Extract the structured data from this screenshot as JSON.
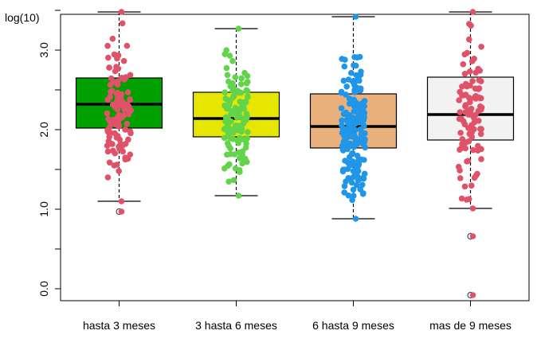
{
  "chart_data": {
    "type": "box",
    "title": "",
    "ylabel": "log(10)",
    "xlabel": "",
    "ylim": [
      -0.15,
      3.45
    ],
    "yticks": [
      "0.0",
      "",
      "1.0",
      "",
      "2.0",
      "",
      "3.0",
      ""
    ],
    "ytick_values": [
      0.0,
      0.5,
      1.0,
      1.5,
      2.0,
      2.5,
      3.0,
      3.5
    ],
    "categories": [
      "hasta 3 meses",
      "3 hasta 6 meses",
      "6 hasta 9 meses",
      "mas de 9 meses"
    ],
    "boxes": [
      {
        "min": 1.1,
        "q1": 2.02,
        "median": 2.32,
        "q3": 2.65,
        "max": 3.48,
        "outliers": [
          0.97
        ],
        "box_color": "#00a000",
        "point_color": "#e05268",
        "n_points": 110
      },
      {
        "min": 1.17,
        "q1": 1.91,
        "median": 2.14,
        "q3": 2.47,
        "max": 3.27,
        "outliers": [],
        "box_color": "#e6e600",
        "point_color": "#62d44a",
        "n_points": 120
      },
      {
        "min": 0.88,
        "q1": 1.77,
        "median": 2.04,
        "q3": 2.45,
        "max": 3.42,
        "outliers": [],
        "box_color": "#e9b07c",
        "point_color": "#2196e8",
        "n_points": 190
      },
      {
        "min": 1.01,
        "q1": 1.87,
        "median": 2.19,
        "q3": 2.66,
        "max": 3.48,
        "outliers": [
          0.66,
          -0.08
        ],
        "box_color": "#f2f2f2",
        "point_color": "#e05268",
        "n_points": 100
      }
    ],
    "grid": false,
    "legend": "none"
  }
}
